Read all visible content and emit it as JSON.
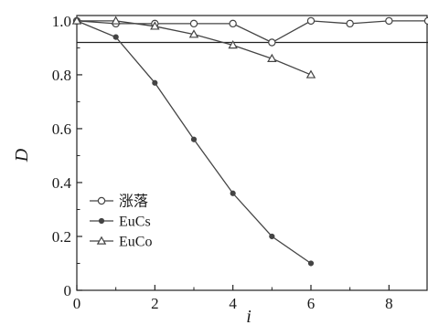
{
  "chart_data": {
    "type": "line",
    "xlabel": "i",
    "ylabel": "D",
    "xlim": [
      0,
      9
    ],
    "ylim": [
      0,
      1.02
    ],
    "xticks": [
      0,
      2,
      4,
      6,
      8
    ],
    "yticks": [
      0,
      0.2,
      0.4,
      0.6,
      0.8,
      1.0
    ],
    "xtick_labels": [
      "0",
      "2",
      "4",
      "6",
      "8"
    ],
    "ytick_labels": [
      "0",
      "0.2",
      "0.4",
      "0.6",
      "0.8",
      "1.0"
    ],
    "grid": false,
    "legend_position": "bottom-left",
    "reference_line": 0.92,
    "series": [
      {
        "name": "涨落",
        "marker": "open-circle",
        "color": "#444444",
        "x": [
          0,
          1,
          2,
          3,
          4,
          5,
          6,
          7,
          8,
          9
        ],
        "y": [
          1.0,
          0.99,
          0.99,
          0.99,
          0.99,
          0.92,
          1.0,
          0.99,
          1.0,
          1.0
        ]
      },
      {
        "name": "EuCs",
        "marker": "filled-circle",
        "color": "#444444",
        "x": [
          0,
          1,
          2,
          3,
          4,
          5,
          6
        ],
        "y": [
          1.0,
          0.94,
          0.77,
          0.56,
          0.36,
          0.2,
          0.1
        ]
      },
      {
        "name": "EuCo",
        "marker": "open-triangle",
        "color": "#444444",
        "x": [
          0,
          1,
          2,
          3,
          4,
          5,
          6
        ],
        "y": [
          1.0,
          1.0,
          0.98,
          0.95,
          0.91,
          0.86,
          0.8
        ]
      }
    ]
  }
}
